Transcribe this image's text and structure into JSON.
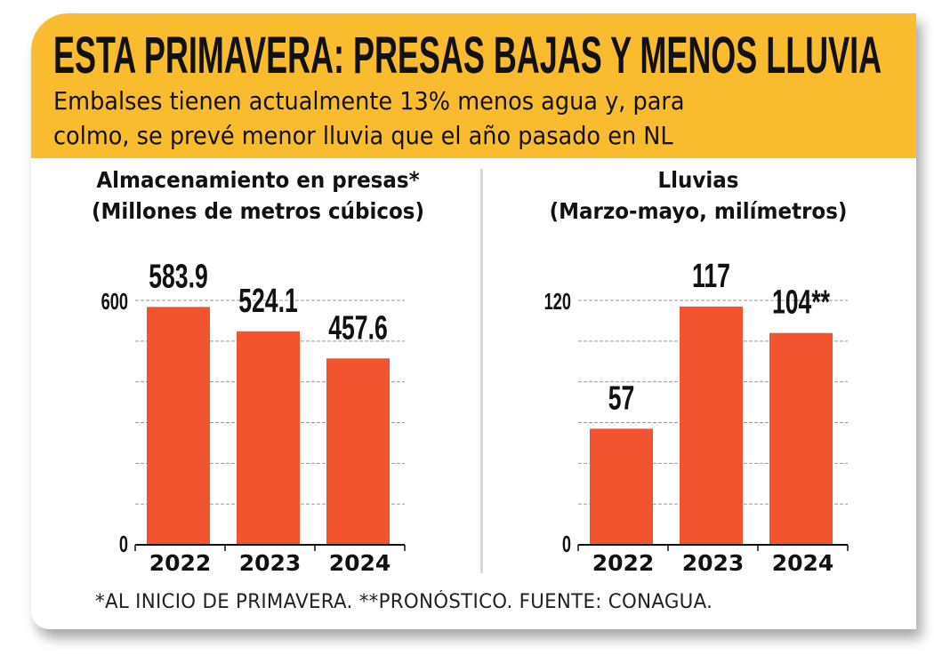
{
  "header": {
    "title": "ESTA PRIMAVERA: PRESAS BAJAS Y MENOS LLUVIA",
    "subtitle_line1": "Embalses tienen actualmente 13% menos agua y, para",
    "subtitle_line2": "colmo, se prevé menor lluvia que el año pasado en NL"
  },
  "footnote": "*AL INICIO DE PRIMAVERA. **PRONÓSTICO. FUENTE: CONAGUA.",
  "colors": {
    "header_bg": "#F9BC2E",
    "bar": "#F25430",
    "text": "#111111",
    "grid": "#9a9a9a"
  },
  "chart_data": [
    {
      "type": "bar",
      "title": "Almacenamiento en presas*",
      "subtitle": "(Millones de metros cúbicos)",
      "categories": [
        "2022",
        "2023",
        "2024"
      ],
      "values": [
        583.9,
        524.1,
        457.6
      ],
      "value_labels": [
        "583.9",
        "524.1",
        "457.6"
      ],
      "ylim": [
        0,
        600
      ],
      "y_tick_labels": [
        "0",
        "600"
      ],
      "gridline_step": 100,
      "grid": true
    },
    {
      "type": "bar",
      "title": "Lluvias",
      "subtitle": "(Marzo-mayo, milímetros)",
      "categories": [
        "2022",
        "2023",
        "2024"
      ],
      "values": [
        57,
        117,
        104
      ],
      "value_labels": [
        "57",
        "117",
        "104**"
      ],
      "ylim": [
        0,
        120
      ],
      "y_tick_labels": [
        "0",
        "120"
      ],
      "gridline_step": 20,
      "grid": true
    }
  ]
}
